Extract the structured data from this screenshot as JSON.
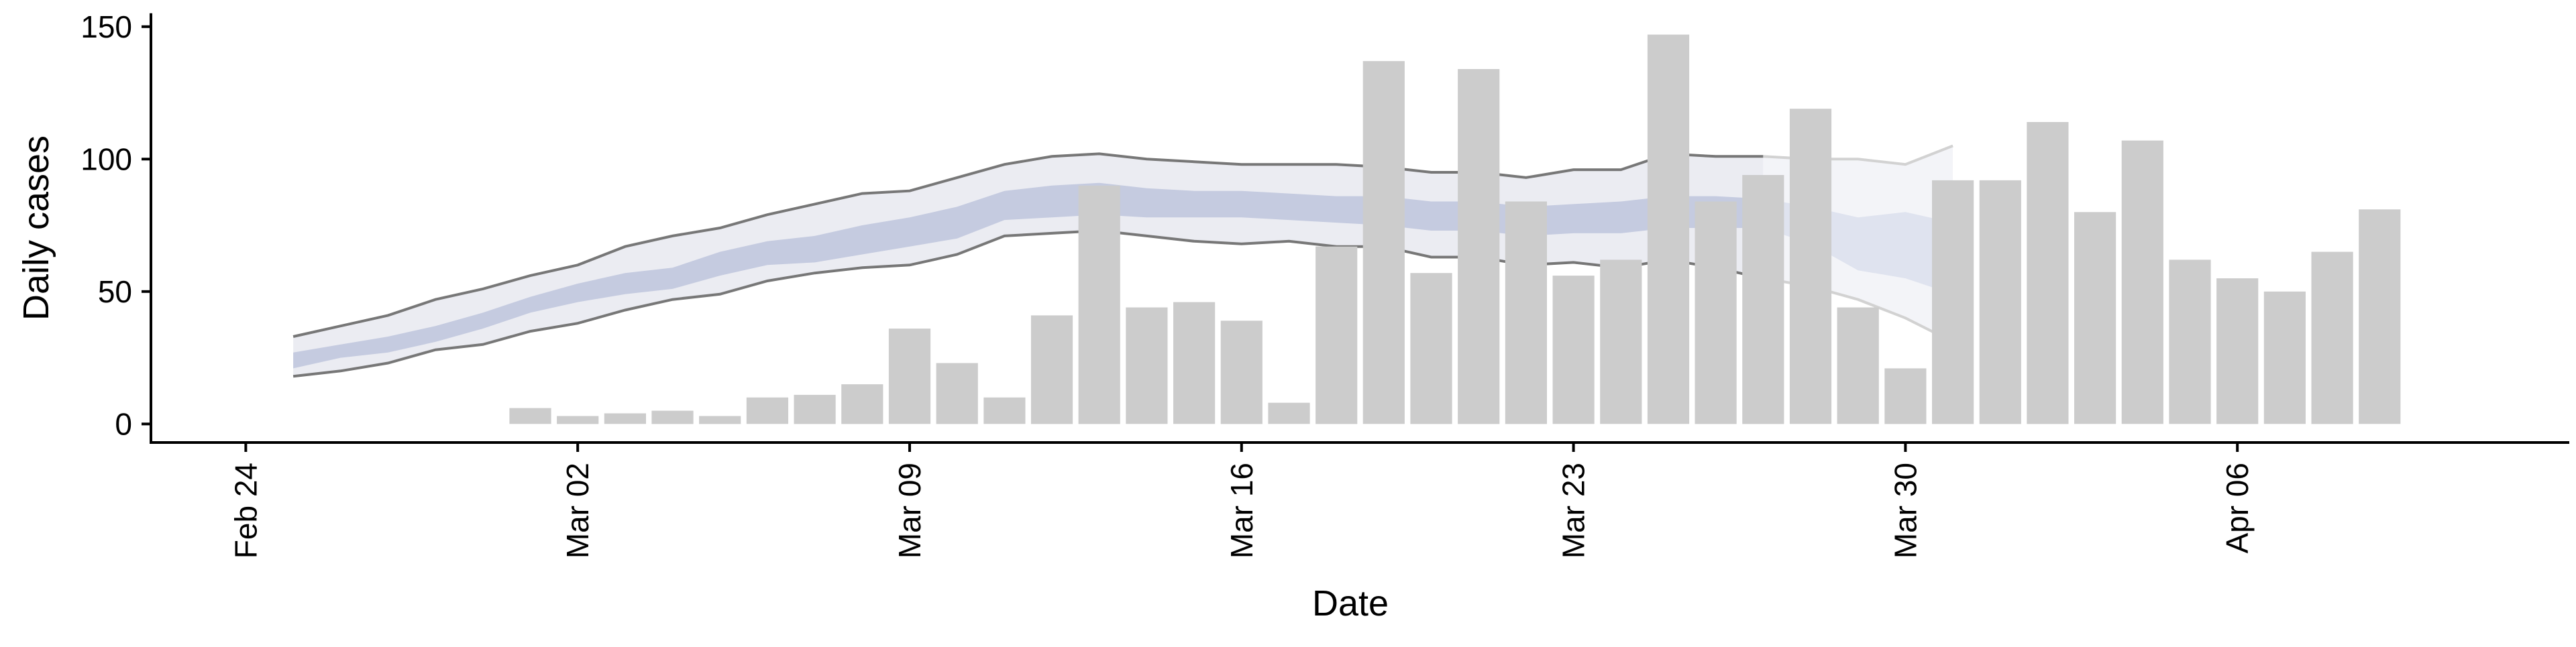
{
  "chart_data": {
    "type": "bar",
    "xlabel": "Date",
    "ylabel": "Daily cases",
    "x_axis": {
      "range": [
        "2020-02-22",
        "2020-04-13"
      ],
      "ticks": [
        {
          "date": "2020-02-24",
          "label": "Feb 24"
        },
        {
          "date": "2020-03-02",
          "label": "Mar 02"
        },
        {
          "date": "2020-03-09",
          "label": "Mar 09"
        },
        {
          "date": "2020-03-16",
          "label": "Mar 16"
        },
        {
          "date": "2020-03-23",
          "label": "Mar 23"
        },
        {
          "date": "2020-03-30",
          "label": "Mar 30"
        },
        {
          "date": "2020-04-06",
          "label": "Apr 06"
        }
      ]
    },
    "y_axis": {
      "range": [
        -7,
        155
      ],
      "ticks": [
        {
          "value": 0,
          "label": "0"
        },
        {
          "value": 50,
          "label": "50"
        },
        {
          "value": 100,
          "label": "100"
        },
        {
          "value": 150,
          "label": "150"
        }
      ]
    },
    "grid": false,
    "colors": {
      "bars": "#cccccc",
      "outer_band": "#ebecf2",
      "inner_band": "#c5cbe0",
      "bound_lines": "#777777",
      "forecast_outer_band": "#f3f4f8",
      "forecast_inner_band": "#dfe3ef",
      "forecast_lines": "#d2d2d2"
    },
    "bars": [
      {
        "date": "2020-03-01",
        "value": 6
      },
      {
        "date": "2020-03-02",
        "value": 3
      },
      {
        "date": "2020-03-03",
        "value": 4
      },
      {
        "date": "2020-03-04",
        "value": 5
      },
      {
        "date": "2020-03-05",
        "value": 3
      },
      {
        "date": "2020-03-06",
        "value": 10
      },
      {
        "date": "2020-03-07",
        "value": 11
      },
      {
        "date": "2020-03-08",
        "value": 15
      },
      {
        "date": "2020-03-09",
        "value": 36
      },
      {
        "date": "2020-03-10",
        "value": 23
      },
      {
        "date": "2020-03-11",
        "value": 10
      },
      {
        "date": "2020-03-12",
        "value": 41
      },
      {
        "date": "2020-03-13",
        "value": 90
      },
      {
        "date": "2020-03-14",
        "value": 44
      },
      {
        "date": "2020-03-15",
        "value": 46
      },
      {
        "date": "2020-03-16",
        "value": 39
      },
      {
        "date": "2020-03-17",
        "value": 8
      },
      {
        "date": "2020-03-18",
        "value": 67
      },
      {
        "date": "2020-03-19",
        "value": 137
      },
      {
        "date": "2020-03-20",
        "value": 57
      },
      {
        "date": "2020-03-21",
        "value": 134
      },
      {
        "date": "2020-03-22",
        "value": 84
      },
      {
        "date": "2020-03-23",
        "value": 56
      },
      {
        "date": "2020-03-24",
        "value": 62
      },
      {
        "date": "2020-03-25",
        "value": 147
      },
      {
        "date": "2020-03-26",
        "value": 84
      },
      {
        "date": "2020-03-27",
        "value": 94
      },
      {
        "date": "2020-03-28",
        "value": 119
      },
      {
        "date": "2020-03-29",
        "value": 44
      },
      {
        "date": "2020-03-30",
        "value": 21
      },
      {
        "date": "2020-03-31",
        "value": 92
      },
      {
        "date": "2020-04-01",
        "value": 92
      },
      {
        "date": "2020-04-02",
        "value": 114
      },
      {
        "date": "2020-04-03",
        "value": 80
      },
      {
        "date": "2020-04-04",
        "value": 107
      },
      {
        "date": "2020-04-05",
        "value": 62
      },
      {
        "date": "2020-04-06",
        "value": 55
      },
      {
        "date": "2020-04-07",
        "value": 50
      },
      {
        "date": "2020-04-08",
        "value": 65
      },
      {
        "date": "2020-04-09",
        "value": 81
      }
    ],
    "estimate_band": {
      "dates": [
        "2020-02-25",
        "2020-02-26",
        "2020-02-27",
        "2020-02-28",
        "2020-02-29",
        "2020-03-01",
        "2020-03-02",
        "2020-03-03",
        "2020-03-04",
        "2020-03-05",
        "2020-03-06",
        "2020-03-07",
        "2020-03-08",
        "2020-03-09",
        "2020-03-10",
        "2020-03-11",
        "2020-03-12",
        "2020-03-13",
        "2020-03-14",
        "2020-03-15",
        "2020-03-16",
        "2020-03-17",
        "2020-03-18",
        "2020-03-19",
        "2020-03-20",
        "2020-03-21",
        "2020-03-22",
        "2020-03-23",
        "2020-03-24",
        "2020-03-25",
        "2020-03-26",
        "2020-03-27"
      ],
      "lower": [
        18,
        20,
        23,
        28,
        30,
        35,
        38,
        43,
        47,
        49,
        54,
        57,
        59,
        60,
        64,
        71,
        72,
        73,
        71,
        69,
        68,
        69,
        67,
        67,
        63,
        63,
        60,
        61,
        59,
        62,
        59,
        55
      ],
      "upper": [
        33,
        37,
        41,
        47,
        51,
        56,
        60,
        67,
        71,
        74,
        79,
        83,
        87,
        88,
        93,
        98,
        101,
        102,
        100,
        99,
        98,
        98,
        98,
        97,
        95,
        95,
        93,
        96,
        96,
        102,
        101,
        101
      ],
      "inner_lower": [
        21,
        25,
        27,
        31,
        36,
        42,
        46,
        49,
        51,
        56,
        60,
        61,
        64,
        67,
        70,
        77,
        78,
        79,
        78,
        78,
        78,
        77,
        76,
        75,
        73,
        73,
        71,
        72,
        72,
        74,
        74,
        74
      ],
      "inner_upper": [
        27,
        30,
        33,
        37,
        42,
        48,
        53,
        57,
        59,
        65,
        69,
        71,
        75,
        78,
        82,
        88,
        90,
        91,
        89,
        88,
        88,
        87,
        86,
        86,
        84,
        84,
        82,
        83,
        84,
        86,
        86,
        85
      ]
    },
    "forecast_band": {
      "dates": [
        "2020-03-27",
        "2020-03-28",
        "2020-03-29",
        "2020-03-30",
        "2020-03-31"
      ],
      "lower": [
        55,
        52,
        47,
        40,
        31
      ],
      "upper": [
        101,
        100,
        100,
        98,
        105
      ],
      "inner_lower": [
        74,
        68,
        58,
        55,
        49
      ],
      "inner_upper": [
        85,
        82,
        78,
        80,
        76
      ]
    }
  }
}
